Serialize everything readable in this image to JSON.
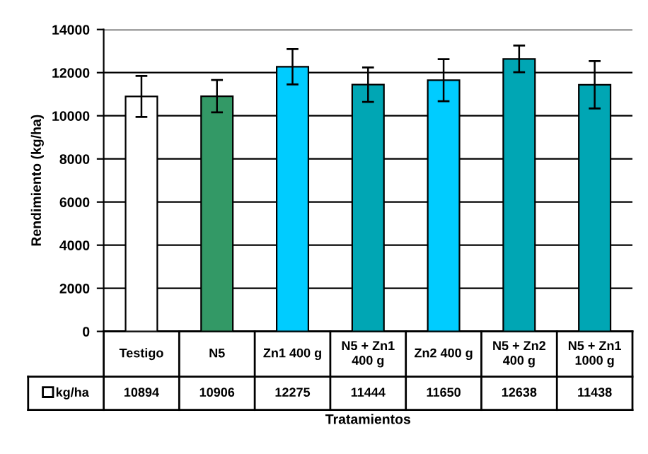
{
  "chart_data": {
    "type": "bar",
    "xlabel": "Tratamientos",
    "ylabel": "Rendimiento (kg/ha)",
    "categories": [
      "Testigo",
      "N5",
      "Zn1 400 g",
      "N5 + Zn1 400 g",
      "Zn2 400 g",
      "N5 + Zn2 400 g",
      "N5 + Zn1 1000 g"
    ],
    "series": [
      {
        "name": "kg/ha",
        "values": [
          10894,
          10906,
          12275,
          11444,
          11650,
          12638,
          11438
        ],
        "errors": [
          950,
          750,
          820,
          800,
          975,
          620,
          1100
        ]
      }
    ],
    "colors": [
      "#ffffff",
      "#339966",
      "#00ccff",
      "#00a6b4",
      "#00ccff",
      "#00a6b4",
      "#00a6b4"
    ],
    "ylim": [
      0,
      14000
    ],
    "yticks": [
      0,
      2000,
      4000,
      6000,
      8000,
      10000,
      12000,
      14000
    ],
    "grid": "y",
    "legend": "bottom",
    "data_labels": true
  }
}
